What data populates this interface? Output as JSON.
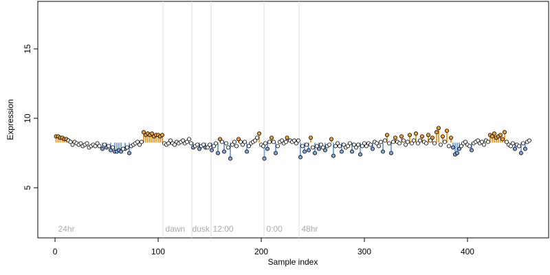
{
  "chart_data": {
    "type": "scatter",
    "xlabel": "Sample index",
    "ylabel": "Expression",
    "xlim": [
      -16.7,
      478.7
    ],
    "ylim": [
      1.39,
      18.42
    ],
    "xticks": [
      0,
      100,
      200,
      300,
      400
    ],
    "yticks": [
      5,
      10,
      15
    ],
    "baseline": 8.25,
    "vlines": [
      104.7,
      132.7,
      151.3,
      202.7,
      236.7
    ],
    "annotations": [
      {
        "text": "24hr",
        "x": 3
      },
      {
        "text": "dawn",
        "x": 107
      },
      {
        "text": "dusk",
        "x": 133
      },
      {
        "text": "12:00",
        "x": 153
      },
      {
        "text": "0:00",
        "x": 205
      },
      {
        "text": "48hr",
        "x": 239
      }
    ],
    "series": [
      {
        "color": "#f0a030",
        "stems": true,
        "x": [
          1,
          3,
          5,
          7,
          9,
          11,
          86,
          88,
          90,
          92,
          94,
          96,
          98,
          100,
          102,
          104,
          160,
          178,
          198,
          210,
          225,
          248,
          268,
          322,
          330,
          336,
          344,
          350,
          356,
          362,
          366,
          370,
          372,
          376,
          380,
          384,
          422,
          424,
          426,
          428,
          430,
          432,
          434,
          436
        ],
        "values": [
          8.7,
          8.7,
          8.6,
          8.6,
          8.5,
          8.5,
          9.0,
          8.8,
          8.9,
          8.8,
          8.9,
          8.7,
          8.8,
          8.8,
          8.7,
          8.8,
          8.5,
          8.5,
          8.9,
          8.6,
          8.6,
          8.6,
          8.5,
          8.8,
          8.6,
          8.7,
          8.8,
          8.9,
          8.7,
          8.8,
          8.6,
          9.0,
          9.3,
          8.7,
          9.1,
          8.6,
          8.8,
          8.7,
          8.9,
          8.6,
          8.7,
          8.8,
          8.5,
          9.0
        ]
      },
      {
        "color": "#7fa8e0",
        "stems": true,
        "x": [
          46,
          50,
          54,
          58,
          60,
          62,
          64,
          68,
          72,
          134,
          140,
          146,
          152,
          158,
          164,
          170,
          186,
          203,
          206,
          214,
          238,
          242,
          246,
          252,
          256,
          262,
          270,
          278,
          288,
          296,
          308,
          318,
          326,
          386,
          388,
          390,
          392,
          404,
          446,
          452,
          456
        ],
        "values": [
          7.8,
          7.9,
          7.7,
          7.6,
          7.6,
          7.7,
          7.6,
          7.8,
          7.5,
          7.9,
          7.8,
          7.9,
          7.7,
          7.5,
          7.6,
          7.1,
          7.6,
          7.1,
          7.8,
          7.5,
          7.2,
          7.6,
          7.7,
          7.5,
          7.8,
          7.7,
          7.3,
          7.6,
          7.6,
          7.4,
          7.8,
          7.6,
          7.5,
          7.9,
          7.4,
          7.5,
          7.8,
          7.7,
          7.8,
          7.5,
          7.8
        ]
      },
      {
        "color": "#ffffff",
        "stems": false,
        "x": [
          13,
          15,
          17,
          19,
          21,
          23,
          25,
          27,
          29,
          31,
          33,
          35,
          37,
          39,
          41,
          43,
          48,
          52,
          56,
          66,
          70,
          74,
          76,
          78,
          80,
          82,
          84,
          106,
          108,
          110,
          112,
          114,
          116,
          118,
          120,
          122,
          124,
          126,
          128,
          130,
          132,
          136,
          138,
          142,
          144,
          148,
          150,
          154,
          156,
          162,
          166,
          168,
          172,
          174,
          176,
          180,
          182,
          184,
          188,
          190,
          192,
          194,
          196,
          200,
          202,
          204,
          208,
          212,
          216,
          218,
          220,
          222,
          224,
          228,
          230,
          232,
          234,
          236,
          240,
          244,
          250,
          254,
          258,
          260,
          264,
          266,
          272,
          274,
          276,
          280,
          282,
          284,
          286,
          290,
          292,
          294,
          298,
          300,
          302,
          304,
          306,
          310,
          312,
          314,
          316,
          320,
          324,
          328,
          332,
          334,
          338,
          340,
          342,
          346,
          348,
          352,
          354,
          358,
          360,
          364,
          368,
          374,
          378,
          382,
          394,
          396,
          398,
          400,
          402,
          406,
          408,
          410,
          412,
          414,
          416,
          418,
          420,
          438,
          440,
          442,
          444,
          448,
          450,
          454,
          458,
          460
        ],
        "values": [
          8.4,
          8.3,
          8.1,
          8.3,
          8.2,
          8.1,
          8.2,
          8.0,
          8.1,
          8.2,
          7.9,
          8.0,
          8.1,
          8.0,
          8.2,
          8.0,
          8.1,
          8.0,
          7.9,
          7.8,
          7.9,
          8.0,
          8.1,
          8.2,
          8.3,
          8.1,
          8.3,
          8.2,
          8.1,
          8.2,
          8.4,
          8.2,
          8.1,
          8.3,
          8.2,
          8.3,
          8.4,
          8.2,
          8.3,
          8.5,
          8.2,
          8.0,
          8.1,
          8.0,
          8.1,
          7.9,
          8.1,
          8.0,
          8.2,
          8.3,
          8.2,
          7.9,
          8.1,
          8.3,
          8.0,
          8.3,
          8.1,
          8.3,
          8.0,
          8.2,
          8.3,
          8.4,
          8.6,
          8.1,
          8.0,
          8.2,
          8.3,
          8.3,
          8.0,
          8.3,
          8.4,
          8.2,
          8.3,
          8.4,
          8.3,
          8.4,
          8.2,
          8.4,
          8.0,
          8.1,
          7.9,
          8.0,
          8.1,
          7.9,
          8.0,
          8.1,
          8.0,
          8.2,
          8.0,
          8.1,
          7.9,
          8.0,
          8.2,
          8.1,
          7.9,
          8.1,
          8.0,
          8.2,
          8.0,
          8.2,
          8.1,
          8.3,
          8.2,
          8.0,
          8.3,
          8.4,
          8.2,
          8.3,
          8.3,
          8.2,
          8.4,
          8.1,
          8.3,
          8.2,
          8.4,
          8.2,
          8.4,
          8.3,
          8.2,
          8.4,
          8.2,
          8.1,
          8.3,
          8.0,
          8.0,
          8.2,
          8.3,
          8.1,
          8.0,
          8.2,
          8.3,
          8.4,
          8.2,
          8.3,
          8.1,
          8.4,
          8.3,
          8.3,
          8.1,
          8.0,
          8.2,
          8.1,
          8.0,
          8.2,
          8.3,
          8.4
        ]
      }
    ]
  }
}
